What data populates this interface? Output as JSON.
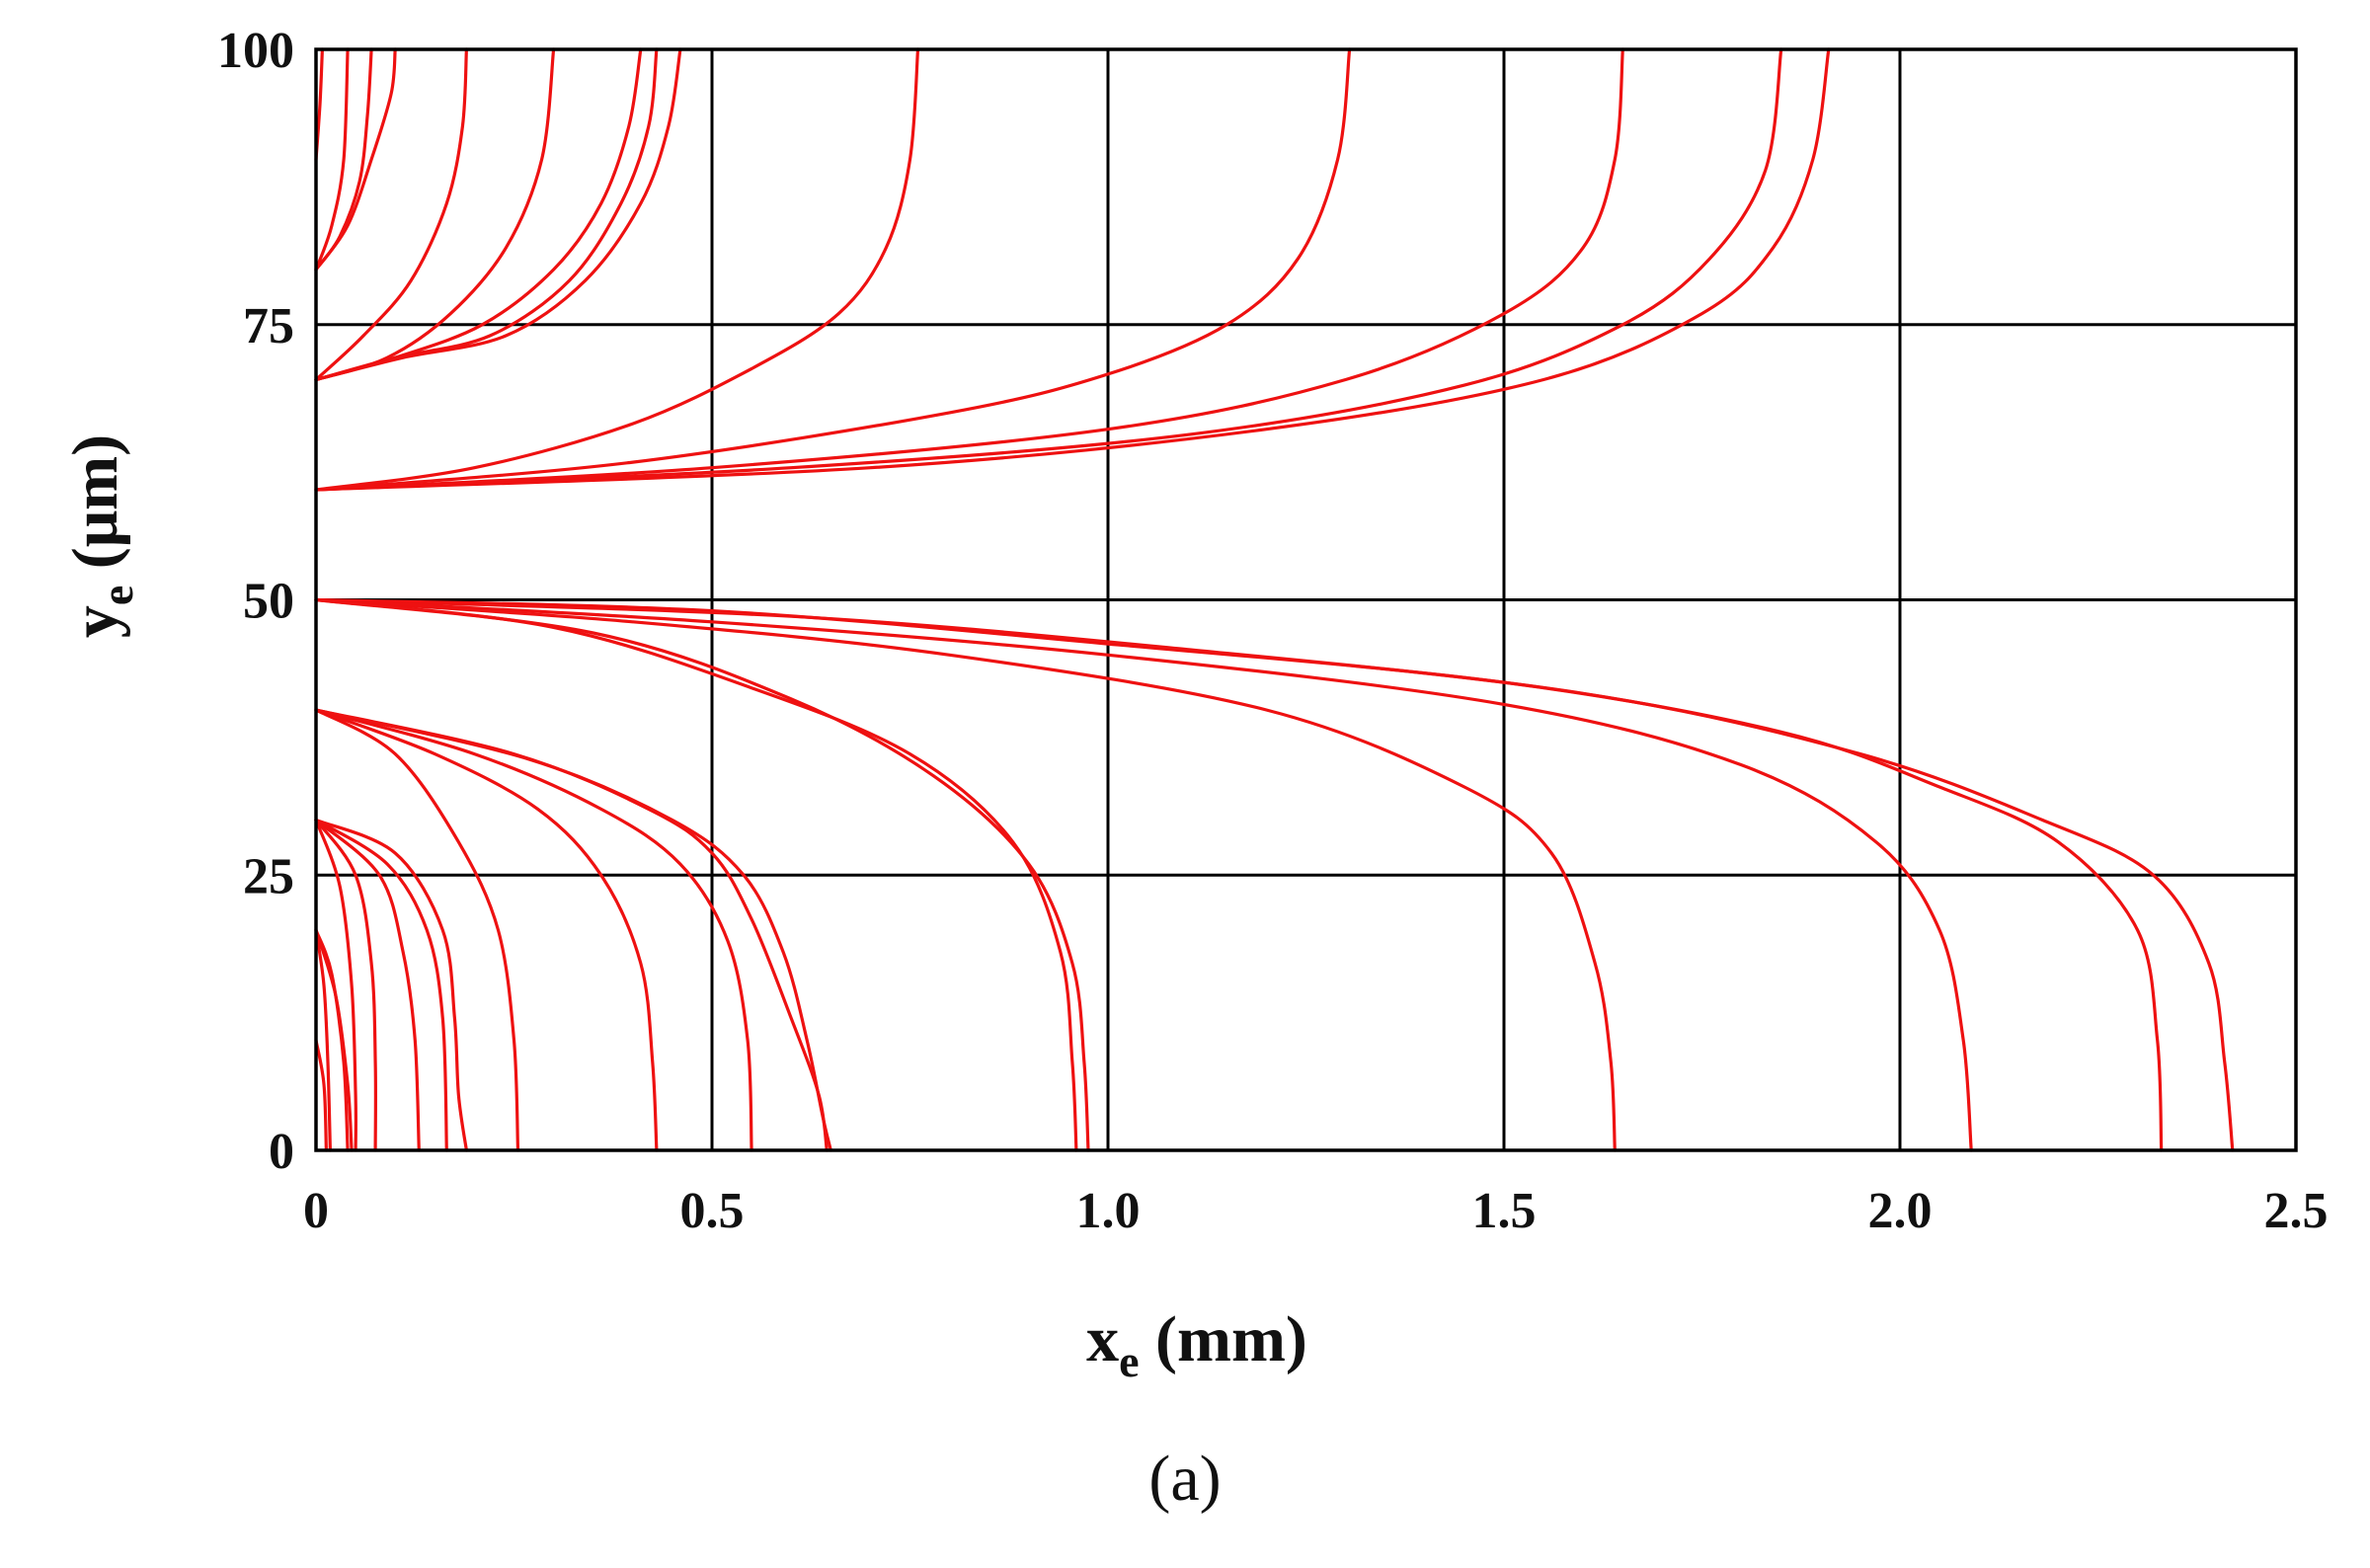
{
  "panel_label": "(a)",
  "chart_data": {
    "type": "line",
    "xlabel": {
      "main": "x",
      "sub": "e",
      "unit": " (mm)"
    },
    "ylabel": {
      "main": "y",
      "sub": "e",
      "unit": " (μm)"
    },
    "xlim": [
      0,
      2.5
    ],
    "ylim": [
      0,
      100
    ],
    "x_ticks": [
      0,
      0.5,
      1.0,
      1.5,
      2.0,
      2.5
    ],
    "x_tick_labels": [
      "0",
      "0.5",
      "1.0",
      "1.5",
      "2.0",
      "2.5"
    ],
    "y_ticks": [
      0,
      25,
      50,
      75,
      100
    ],
    "y_tick_labels": [
      "0",
      "25",
      "50",
      "75",
      "100"
    ],
    "grid": true,
    "line_color": "#ee1111",
    "grid_color": "#000000",
    "series": [
      {
        "values": [
          [
            0.0,
            90
          ],
          [
            0.005,
            95
          ],
          [
            0.008,
            100
          ]
        ]
      },
      {
        "values": [
          [
            0.0,
            80
          ],
          [
            0.02,
            84
          ],
          [
            0.035,
            90
          ],
          [
            0.04,
            100
          ]
        ]
      },
      {
        "values": [
          [
            0.0,
            80
          ],
          [
            0.03,
            83
          ],
          [
            0.055,
            88
          ],
          [
            0.065,
            94
          ],
          [
            0.07,
            100
          ]
        ]
      },
      {
        "values": [
          [
            0.0,
            80
          ],
          [
            0.04,
            84
          ],
          [
            0.07,
            90
          ],
          [
            0.095,
            96
          ],
          [
            0.1,
            100
          ]
        ]
      },
      {
        "values": [
          [
            0.0,
            70
          ],
          [
            0.06,
            74
          ],
          [
            0.12,
            79
          ],
          [
            0.165,
            86
          ],
          [
            0.185,
            93
          ],
          [
            0.19,
            100
          ]
        ]
      },
      {
        "values": [
          [
            0.0,
            70
          ],
          [
            0.09,
            72
          ],
          [
            0.17,
            76
          ],
          [
            0.24,
            82
          ],
          [
            0.285,
            90
          ],
          [
            0.3,
            100
          ]
        ]
      },
      {
        "values": [
          [
            0.0,
            70
          ],
          [
            0.1,
            72
          ],
          [
            0.21,
            75
          ],
          [
            0.3,
            80
          ],
          [
            0.36,
            86
          ],
          [
            0.395,
            93
          ],
          [
            0.41,
            100
          ]
        ]
      },
      {
        "values": [
          [
            0.0,
            70
          ],
          [
            0.1,
            72
          ],
          [
            0.22,
            74
          ],
          [
            0.32,
            79
          ],
          [
            0.385,
            86
          ],
          [
            0.42,
            93
          ],
          [
            0.43,
            100
          ]
        ]
      },
      {
        "values": [
          [
            0.0,
            70
          ],
          [
            0.11,
            72
          ],
          [
            0.24,
            74
          ],
          [
            0.34,
            79
          ],
          [
            0.41,
            86
          ],
          [
            0.445,
            93
          ],
          [
            0.46,
            100
          ]
        ]
      },
      {
        "values": [
          [
            0.0,
            60
          ],
          [
            0.2,
            62
          ],
          [
            0.4,
            66
          ],
          [
            0.55,
            71
          ],
          [
            0.66,
            76
          ],
          [
            0.72,
            82
          ],
          [
            0.75,
            90
          ],
          [
            0.76,
            100
          ]
        ]
      },
      {
        "values": [
          [
            0.0,
            60
          ],
          [
            0.4,
            62.5
          ],
          [
            0.8,
            67
          ],
          [
            1.0,
            70.5
          ],
          [
            1.15,
            75
          ],
          [
            1.24,
            81
          ],
          [
            1.29,
            90
          ],
          [
            1.305,
            100
          ]
        ]
      },
      {
        "values": [
          [
            0.0,
            60
          ],
          [
            0.5,
            62
          ],
          [
            1.0,
            65.5
          ],
          [
            1.3,
            70
          ],
          [
            1.5,
            76
          ],
          [
            1.6,
            82
          ],
          [
            1.64,
            90
          ],
          [
            1.65,
            100
          ]
        ]
      },
      {
        "values": [
          [
            0.0,
            60
          ],
          [
            0.6,
            62
          ],
          [
            1.1,
            65
          ],
          [
            1.45,
            69.5
          ],
          [
            1.65,
            75
          ],
          [
            1.76,
            81
          ],
          [
            1.83,
            89
          ],
          [
            1.85,
            100
          ]
        ]
      },
      {
        "values": [
          [
            0.0,
            60
          ],
          [
            0.7,
            62
          ],
          [
            1.2,
            65.5
          ],
          [
            1.55,
            70
          ],
          [
            1.75,
            76
          ],
          [
            1.84,
            82
          ],
          [
            1.89,
            90
          ],
          [
            1.91,
            100
          ]
        ]
      },
      {
        "values": [
          [
            0.0,
            50
          ],
          [
            0.5,
            49
          ],
          [
            1.0,
            46
          ],
          [
            1.5,
            42.5
          ],
          [
            1.85,
            38
          ],
          [
            2.05,
            33
          ],
          [
            2.2,
            28
          ],
          [
            2.3,
            20
          ],
          [
            2.325,
            10
          ],
          [
            2.33,
            0
          ]
        ]
      },
      {
        "values": [
          [
            0.0,
            50
          ],
          [
            0.6,
            48.5
          ],
          [
            1.1,
            45.5
          ],
          [
            1.6,
            41.5
          ],
          [
            1.95,
            36
          ],
          [
            2.18,
            30
          ],
          [
            2.32,
            25
          ],
          [
            2.39,
            17
          ],
          [
            2.41,
            8
          ],
          [
            2.42,
            0
          ]
        ]
      },
      {
        "values": [
          [
            0.0,
            50
          ],
          [
            0.4,
            48
          ],
          [
            0.8,
            45
          ],
          [
            1.2,
            40
          ],
          [
            1.45,
            33
          ],
          [
            1.56,
            27
          ],
          [
            1.615,
            17
          ],
          [
            1.635,
            8
          ],
          [
            1.64,
            0
          ]
        ]
      },
      {
        "values": [
          [
            0.0,
            50
          ],
          [
            0.5,
            48
          ],
          [
            1.0,
            45
          ],
          [
            1.5,
            40.5
          ],
          [
            1.8,
            35
          ],
          [
            1.97,
            28
          ],
          [
            2.05,
            20
          ],
          [
            2.08,
            10
          ],
          [
            2.09,
            0
          ]
        ]
      },
      {
        "values": [
          [
            0.0,
            50
          ],
          [
            0.3,
            47.5
          ],
          [
            0.55,
            42
          ],
          [
            0.75,
            36
          ],
          [
            0.88,
            28
          ],
          [
            0.94,
            18
          ],
          [
            0.955,
            8
          ],
          [
            0.96,
            0
          ]
        ]
      },
      {
        "values": [
          [
            0.0,
            50
          ],
          [
            0.35,
            47
          ],
          [
            0.6,
            41
          ],
          [
            0.78,
            34
          ],
          [
            0.9,
            26
          ],
          [
            0.955,
            17
          ],
          [
            0.97,
            8
          ],
          [
            0.975,
            0
          ]
        ]
      },
      {
        "values": [
          [
            0.0,
            40
          ],
          [
            0.1,
            36
          ],
          [
            0.18,
            28
          ],
          [
            0.23,
            20
          ],
          [
            0.25,
            10
          ],
          [
            0.255,
            0
          ]
        ]
      },
      {
        "values": [
          [
            0.0,
            40
          ],
          [
            0.15,
            36
          ],
          [
            0.28,
            31
          ],
          [
            0.36,
            25
          ],
          [
            0.41,
            17
          ],
          [
            0.425,
            8
          ],
          [
            0.43,
            0
          ]
        ]
      },
      {
        "values": [
          [
            0.0,
            40
          ],
          [
            0.2,
            36
          ],
          [
            0.36,
            31
          ],
          [
            0.46,
            26
          ],
          [
            0.52,
            19
          ],
          [
            0.545,
            10
          ],
          [
            0.55,
            0
          ]
        ]
      },
      {
        "values": [
          [
            0.0,
            40
          ],
          [
            0.25,
            36
          ],
          [
            0.42,
            31
          ],
          [
            0.5,
            27
          ],
          [
            0.55,
            21
          ],
          [
            0.6,
            12
          ],
          [
            0.635,
            5
          ],
          [
            0.645,
            0
          ]
        ]
      },
      {
        "values": [
          [
            0.0,
            40
          ],
          [
            0.27,
            35.5
          ],
          [
            0.45,
            30
          ],
          [
            0.54,
            25
          ],
          [
            0.59,
            18
          ],
          [
            0.62,
            10
          ],
          [
            0.64,
            3
          ],
          [
            0.65,
            0
          ]
        ]
      },
      {
        "values": [
          [
            0.0,
            30
          ],
          [
            0.03,
            24
          ],
          [
            0.045,
            15
          ],
          [
            0.05,
            5
          ],
          [
            0.05,
            0
          ]
        ]
      },
      {
        "values": [
          [
            0.0,
            30
          ],
          [
            0.05,
            25
          ],
          [
            0.07,
            17
          ],
          [
            0.075,
            8
          ],
          [
            0.075,
            0
          ]
        ]
      },
      {
        "values": [
          [
            0.0,
            30
          ],
          [
            0.08,
            25
          ],
          [
            0.11,
            18
          ],
          [
            0.125,
            10
          ],
          [
            0.13,
            0
          ]
        ]
      },
      {
        "values": [
          [
            0.0,
            30
          ],
          [
            0.09,
            26
          ],
          [
            0.14,
            20
          ],
          [
            0.16,
            12
          ],
          [
            0.165,
            0
          ]
        ]
      },
      {
        "values": [
          [
            0.0,
            30
          ],
          [
            0.1,
            27
          ],
          [
            0.16,
            20
          ],
          [
            0.175,
            12
          ],
          [
            0.18,
            5
          ],
          [
            0.19,
            0
          ]
        ]
      },
      {
        "values": [
          [
            0.0,
            20
          ],
          [
            0.01,
            15
          ],
          [
            0.015,
            8
          ],
          [
            0.018,
            0
          ]
        ]
      },
      {
        "values": [
          [
            0.0,
            20
          ],
          [
            0.02,
            16
          ],
          [
            0.035,
            8
          ],
          [
            0.04,
            0
          ]
        ]
      },
      {
        "values": [
          [
            0.0,
            20
          ],
          [
            0.025,
            14
          ],
          [
            0.04,
            6
          ],
          [
            0.045,
            0
          ]
        ]
      },
      {
        "values": [
          [
            0.0,
            10
          ],
          [
            0.01,
            6
          ],
          [
            0.013,
            0
          ]
        ]
      }
    ]
  }
}
